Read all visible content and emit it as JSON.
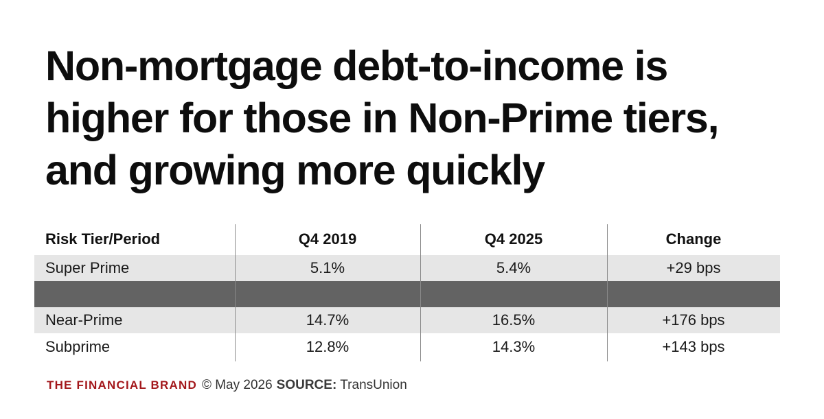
{
  "chart_data": {
    "type": "table",
    "title_lines": [
      "Non-mortgage debt-to-income is",
      "higher for those in Non-Prime tiers,",
      "and growing more quickly"
    ],
    "columns": [
      "Risk Tier/Period",
      "Q4 2019",
      "Q4 2025",
      "Change"
    ],
    "rows": [
      [
        "Super Prime",
        "5.1%",
        "5.4%",
        "+29 bps"
      ],
      [
        "",
        "",
        "",
        ""
      ],
      [
        "Near-Prime",
        "14.7%",
        "16.5%",
        "+176 bps"
      ],
      [
        "Subprime",
        "12.8%",
        "14.3%",
        "+143 bps"
      ]
    ],
    "colors": {
      "row_band_light": "#e6e6e6",
      "row_band_dark": "#636363",
      "divider": "#8a8a8a",
      "brand": "#a3171b"
    }
  },
  "footer": {
    "brand": "THE FINANCIAL BRAND",
    "copyright": "© May 2026",
    "source_label": "SOURCE:",
    "source": "TransUnion"
  }
}
